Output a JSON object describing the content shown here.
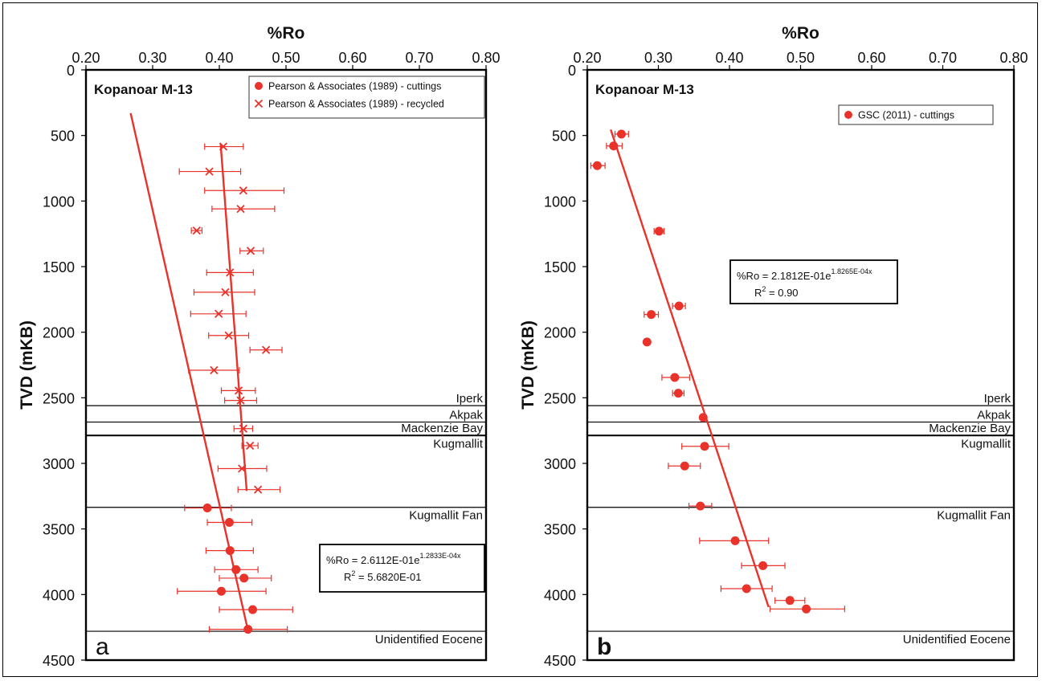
{
  "colors": {
    "data": "#e8322a",
    "frame": "#000000",
    "text": "#111111"
  },
  "chart_data": [
    {
      "type": "scatter",
      "panel_label": "a",
      "well": "Kopanoar M-13",
      "xlabel": "%Ro",
      "ylabel": "TVD (mKB)",
      "xlim": [
        0.2,
        0.8
      ],
      "ylim": [
        0,
        4500
      ],
      "y_inverted": true,
      "x_axis_position": "top",
      "xticks": [
        "0.20",
        "0.30",
        "0.40",
        "0.50",
        "0.60",
        "0.70",
        "0.80"
      ],
      "yticks": [
        "0",
        "500",
        "1000",
        "1500",
        "2000",
        "2500",
        "3000",
        "3500",
        "4000",
        "4500"
      ],
      "legend_position": "top-right",
      "series": [
        {
          "name": "Pearson & Associates (1989) - cuttings",
          "marker": "circle",
          "points": [
            {
              "x": 0.382,
              "y": 3340,
              "xerr": [
                0.348,
                0.418
              ]
            },
            {
              "x": 0.415,
              "y": 3450,
              "xerr": [
                0.382,
                0.449
              ]
            },
            {
              "x": 0.416,
              "y": 3665,
              "xerr": [
                0.38,
                0.451
              ]
            },
            {
              "x": 0.425,
              "y": 3810,
              "xerr": [
                0.393,
                0.458
              ]
            },
            {
              "x": 0.437,
              "y": 3875,
              "xerr": [
                0.4,
                0.478
              ]
            },
            {
              "x": 0.403,
              "y": 3975,
              "xerr": [
                0.337,
                0.47
              ]
            },
            {
              "x": 0.45,
              "y": 4115,
              "xerr": [
                0.4,
                0.51
              ]
            },
            {
              "x": 0.443,
              "y": 4265,
              "xerr": [
                0.385,
                0.502
              ]
            }
          ]
        },
        {
          "name": "Pearson & Associates (1989) - recycled",
          "marker": "x",
          "points": [
            {
              "x": 0.406,
              "y": 585,
              "xerr": [
                0.378,
                0.436
              ]
            },
            {
              "x": 0.385,
              "y": 775,
              "xerr": [
                0.34,
                0.432
              ]
            },
            {
              "x": 0.436,
              "y": 920,
              "xerr": [
                0.378,
                0.497
              ]
            },
            {
              "x": 0.432,
              "y": 1060,
              "xerr": [
                0.389,
                0.483
              ]
            },
            {
              "x": 0.366,
              "y": 1225,
              "xerr": [
                0.358,
                0.374
              ]
            },
            {
              "x": 0.447,
              "y": 1380,
              "xerr": [
                0.431,
                0.466
              ]
            },
            {
              "x": 0.416,
              "y": 1545,
              "xerr": [
                0.381,
                0.451
              ]
            },
            {
              "x": 0.409,
              "y": 1695,
              "xerr": [
                0.362,
                0.453
              ]
            },
            {
              "x": 0.399,
              "y": 1860,
              "xerr": [
                0.357,
                0.44
              ]
            },
            {
              "x": 0.414,
              "y": 2025,
              "xerr": [
                0.384,
                0.444
              ]
            },
            {
              "x": 0.47,
              "y": 2135,
              "xerr": [
                0.446,
                0.494
              ]
            },
            {
              "x": 0.392,
              "y": 2290,
              "xerr": [
                0.354,
                0.43
              ]
            },
            {
              "x": 0.429,
              "y": 2445,
              "xerr": [
                0.403,
                0.454
              ]
            },
            {
              "x": 0.432,
              "y": 2520,
              "xerr": [
                0.408,
                0.456
              ]
            },
            {
              "x": 0.436,
              "y": 2735,
              "xerr": [
                0.422,
                0.45
              ]
            },
            {
              "x": 0.446,
              "y": 2865,
              "xerr": [
                0.434,
                0.458
              ]
            },
            {
              "x": 0.434,
              "y": 3040,
              "xerr": [
                0.398,
                0.471
              ]
            },
            {
              "x": 0.458,
              "y": 3200,
              "xerr": [
                0.428,
                0.491
              ]
            }
          ]
        }
      ],
      "trendlines": [
        {
          "x": [
            0.267,
            0.443
          ],
          "y": [
            330,
            4275
          ]
        },
        {
          "x": [
            0.402,
            0.441
          ],
          "y": [
            565,
            3210
          ]
        }
      ],
      "equation": {
        "prefix": "%Ro = 2.6112E-01e",
        "exponent": "1.2833E-04x",
        "r2_prefix": "R",
        "r2_exp": "2",
        "r2_value": " = 5.6820E-01"
      },
      "formations": [
        {
          "name": "Iperk",
          "top": 2560
        },
        {
          "name": "Akpak",
          "top": 2685
        },
        {
          "name": "Mackenzie Bay",
          "top": 2785
        },
        {
          "name": "Kugmallit",
          "top": 2790
        },
        {
          "name": "Kugmallit Fan",
          "top": 3335
        },
        {
          "name": "Unidentified Eocene",
          "top": 4280
        }
      ]
    },
    {
      "type": "scatter",
      "panel_label": "b",
      "well": "Kopanoar M-13",
      "xlabel": "%Ro",
      "ylabel": "TVD (mKB)",
      "xlim": [
        0.2,
        0.8
      ],
      "ylim": [
        0,
        4500
      ],
      "y_inverted": true,
      "x_axis_position": "top",
      "xticks": [
        "0.20",
        "0.30",
        "0.40",
        "0.50",
        "0.60",
        "0.70",
        "0.80"
      ],
      "yticks": [
        "0",
        "500",
        "1000",
        "1500",
        "2000",
        "2500",
        "3000",
        "3500",
        "4000",
        "4500"
      ],
      "legend_position": "top-right",
      "series": [
        {
          "name": "GSC (2011) - cuttings",
          "marker": "circle",
          "points": [
            {
              "x": 0.248,
              "y": 490,
              "xerr": [
                0.239,
                0.258
              ]
            },
            {
              "x": 0.237,
              "y": 580,
              "xerr": [
                0.227,
                0.249
              ]
            },
            {
              "x": 0.214,
              "y": 730,
              "xerr": [
                0.205,
                0.225
              ]
            },
            {
              "x": 0.301,
              "y": 1230,
              "xerr": [
                0.294,
                0.308
              ]
            },
            {
              "x": 0.329,
              "y": 1800,
              "xerr": [
                0.32,
                0.338
              ]
            },
            {
              "x": 0.29,
              "y": 1865,
              "xerr": [
                0.28,
                0.3
              ]
            },
            {
              "x": 0.284,
              "y": 2075,
              "xerr": [
                0.284,
                0.284
              ]
            },
            {
              "x": 0.323,
              "y": 2345,
              "xerr": [
                0.305,
                0.344
              ]
            },
            {
              "x": 0.328,
              "y": 2465,
              "xerr": [
                0.32,
                0.336
              ]
            },
            {
              "x": 0.363,
              "y": 2650,
              "xerr": [
                0.363,
                0.363
              ]
            },
            {
              "x": 0.365,
              "y": 2870,
              "xerr": [
                0.333,
                0.399
              ]
            },
            {
              "x": 0.337,
              "y": 3020,
              "xerr": [
                0.314,
                0.359
              ]
            },
            {
              "x": 0.359,
              "y": 3325,
              "xerr": [
                0.343,
                0.375
              ]
            },
            {
              "x": 0.408,
              "y": 3590,
              "xerr": [
                0.358,
                0.455
              ]
            },
            {
              "x": 0.447,
              "y": 3780,
              "xerr": [
                0.417,
                0.478
              ]
            },
            {
              "x": 0.424,
              "y": 3955,
              "xerr": [
                0.388,
                0.46
              ]
            },
            {
              "x": 0.485,
              "y": 4045,
              "xerr": [
                0.464,
                0.506
              ]
            },
            {
              "x": 0.508,
              "y": 4110,
              "xerr": [
                0.457,
                0.562
              ]
            }
          ]
        }
      ],
      "trendlines": [
        {
          "x": [
            0.233,
            0.455
          ],
          "y": [
            455,
            4095
          ]
        }
      ],
      "equation": {
        "prefix": "%Ro = 2.1812E-01e",
        "exponent": "1.8265E-04x",
        "r2_prefix": "R",
        "r2_exp": "2",
        "r2_value": " = 0.90"
      },
      "formations": [
        {
          "name": "Iperk",
          "top": 2560
        },
        {
          "name": "Akpak",
          "top": 2685
        },
        {
          "name": "Mackenzie Bay",
          "top": 2785
        },
        {
          "name": "Kugmallit",
          "top": 2790
        },
        {
          "name": "Kugmallit Fan",
          "top": 3335
        },
        {
          "name": "Unidentified Eocene",
          "top": 4280
        }
      ]
    }
  ]
}
